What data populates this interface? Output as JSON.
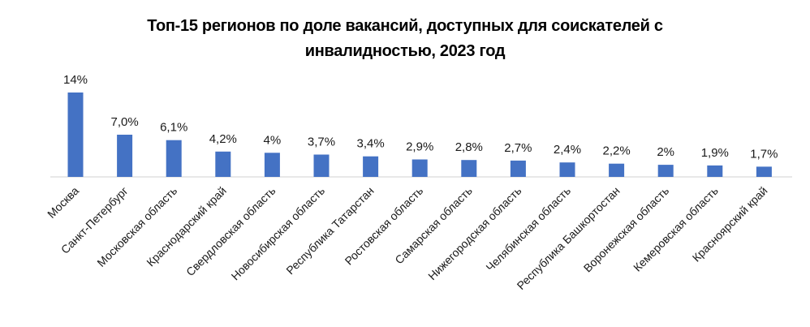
{
  "chart_data": {
    "type": "bar",
    "title_lines": [
      "Топ-15 регионов по доле вакансий, доступных для соискателей с",
      "инвалидностью, 2023 год"
    ],
    "categories": [
      "Москва",
      "Санкт-Петербург",
      "Московская область",
      "Краснодарский край",
      "Свердловская область",
      "Новосибирская область",
      "Республика Татарстан",
      "Ростовская область",
      "Самарская область",
      "Нижегородская область",
      "Челябинская область",
      "Республика Башкортостан",
      "Воронежская область",
      "Кемеровская область",
      "Красноярский край"
    ],
    "values": [
      14,
      7.0,
      6.1,
      4.2,
      4,
      3.7,
      3.4,
      2.9,
      2.8,
      2.7,
      2.4,
      2.2,
      2,
      1.9,
      1.7
    ],
    "data_labels": [
      "14%",
      "7,0%",
      "6,1%",
      "4,2%",
      "4%",
      "3,7%",
      "3,4%",
      "2,9%",
      "2,8%",
      "2,7%",
      "2,4%",
      "2,2%",
      "2%",
      "1,9%",
      "1,7%"
    ],
    "ylim": [
      0,
      14
    ],
    "grid": false,
    "legend": "none",
    "bar_color": "#4472C4",
    "axis_color": "#d0d0d0"
  }
}
